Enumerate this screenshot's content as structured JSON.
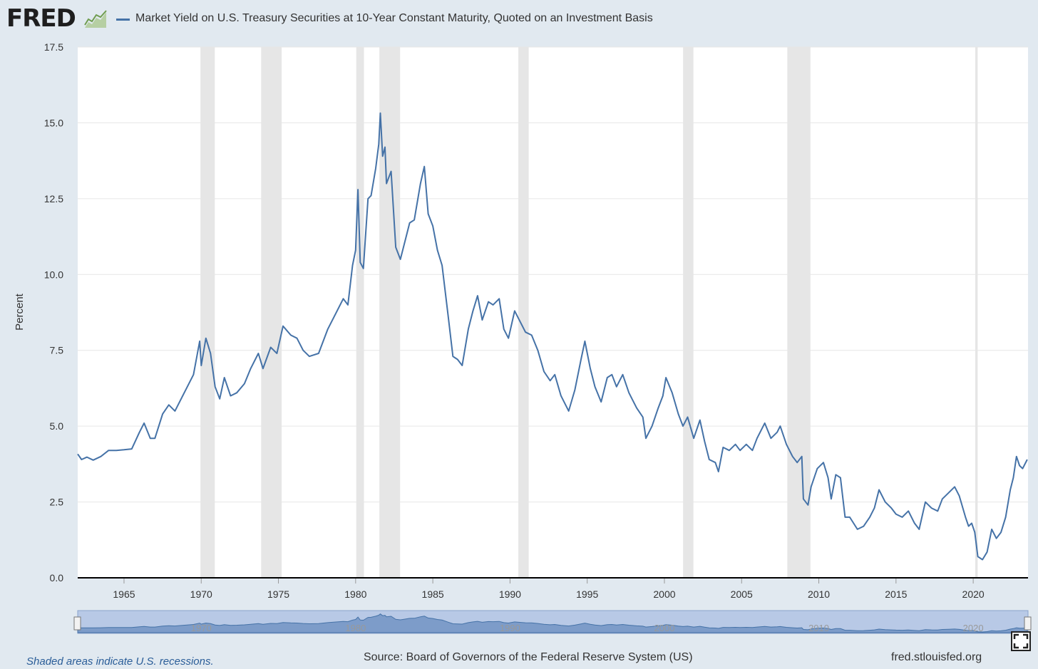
{
  "header": {
    "logo_text": "FRED",
    "legend_label": "Market Yield on U.S. Treasury Securities at 10-Year Constant Maturity, Quoted on an Investment Basis",
    "series_color": "#4572a7"
  },
  "footer": {
    "recession_note": "Shaded areas indicate U.S. recessions.",
    "source": "Source: Board of Governors of the Federal Reserve System (US)",
    "site": "fred.stlouisfed.org"
  },
  "icons": {
    "logo_graph": "line-graph-icon",
    "fullscreen": "fullscreen-icon"
  },
  "chart_data": {
    "type": "line",
    "ylabel": "Percent",
    "xlabel": "",
    "ylim": [
      0,
      17.5
    ],
    "xlim": [
      1962.0,
      2023.55
    ],
    "yticks": [
      0.0,
      2.5,
      5.0,
      7.5,
      10.0,
      12.5,
      15.0,
      17.5
    ],
    "ytick_labels": [
      "0.0",
      "2.5",
      "5.0",
      "7.5",
      "10.0",
      "12.5",
      "15.0",
      "17.5"
    ],
    "xticks": [
      1965,
      1970,
      1975,
      1980,
      1985,
      1990,
      1995,
      2000,
      2005,
      2010,
      2015,
      2020
    ],
    "grid": true,
    "recession_shading_color": "#e6e6e6",
    "recessions": [
      [
        1969.95,
        1970.88
      ],
      [
        1973.88,
        1975.21
      ],
      [
        1980.04,
        1980.54
      ],
      [
        1981.54,
        1982.88
      ],
      [
        1990.54,
        1991.21
      ],
      [
        2001.21,
        2001.88
      ],
      [
        2007.96,
        2009.46
      ],
      [
        2020.13,
        2020.29
      ]
    ],
    "series": [
      {
        "name": "Market Yield on U.S. Treasury Securities at 10-Year Constant Maturity, Quoted on an Investment Basis",
        "color": "#4572a7",
        "x": [
          1962.0,
          1962.25,
          1962.6,
          1963.0,
          1963.5,
          1964.0,
          1964.5,
          1965.0,
          1965.5,
          1966.0,
          1966.3,
          1966.7,
          1967.0,
          1967.5,
          1967.9,
          1968.3,
          1968.7,
          1969.0,
          1969.5,
          1969.9,
          1970.0,
          1970.3,
          1970.6,
          1970.9,
          1971.2,
          1971.5,
          1971.9,
          1972.3,
          1972.8,
          1973.2,
          1973.7,
          1974.0,
          1974.5,
          1974.9,
          1975.3,
          1975.8,
          1976.2,
          1976.6,
          1977.0,
          1977.6,
          1978.2,
          1978.8,
          1979.2,
          1979.5,
          1979.8,
          1980.0,
          1980.15,
          1980.3,
          1980.5,
          1980.8,
          1981.0,
          1981.3,
          1981.5,
          1981.6,
          1981.75,
          1981.9,
          1982.0,
          1982.3,
          1982.6,
          1982.9,
          1983.2,
          1983.5,
          1983.8,
          1984.2,
          1984.45,
          1984.7,
          1985.0,
          1985.3,
          1985.6,
          1986.0,
          1986.3,
          1986.6,
          1986.9,
          1987.3,
          1987.6,
          1987.9,
          1988.2,
          1988.6,
          1988.9,
          1989.3,
          1989.6,
          1989.9,
          1990.3,
          1990.7,
          1991.0,
          1991.4,
          1991.8,
          1992.2,
          1992.6,
          1992.9,
          1993.3,
          1993.8,
          1994.2,
          1994.6,
          1994.85,
          1995.2,
          1995.5,
          1995.9,
          1996.3,
          1996.6,
          1996.9,
          1997.3,
          1997.7,
          1998.2,
          1998.6,
          1998.8,
          1999.2,
          1999.6,
          1999.9,
          2000.1,
          2000.5,
          2000.9,
          2001.2,
          2001.5,
          2001.9,
          2002.3,
          2002.6,
          2002.9,
          2003.3,
          2003.5,
          2003.8,
          2004.2,
          2004.6,
          2004.9,
          2005.3,
          2005.7,
          2006.0,
          2006.5,
          2006.9,
          2007.3,
          2007.5,
          2007.9,
          2008.3,
          2008.6,
          2008.9,
          2009.0,
          2009.3,
          2009.5,
          2009.9,
          2010.3,
          2010.6,
          2010.8,
          2011.1,
          2011.4,
          2011.7,
          2012.0,
          2012.5,
          2012.9,
          2013.3,
          2013.6,
          2013.9,
          2014.3,
          2014.7,
          2015.0,
          2015.4,
          2015.8,
          2016.2,
          2016.5,
          2016.9,
          2017.3,
          2017.7,
          2018.0,
          2018.4,
          2018.8,
          2019.1,
          2019.5,
          2019.7,
          2019.9,
          2020.1,
          2020.3,
          2020.6,
          2020.9,
          2021.2,
          2021.5,
          2021.8,
          2022.1,
          2022.4,
          2022.6,
          2022.8,
          2023.0,
          2023.2,
          2023.5
        ],
        "values": [
          4.08,
          3.9,
          3.98,
          3.88,
          4.0,
          4.2,
          4.2,
          4.22,
          4.25,
          4.8,
          5.1,
          4.6,
          4.6,
          5.4,
          5.7,
          5.5,
          5.9,
          6.2,
          6.7,
          7.8,
          7.0,
          7.9,
          7.4,
          6.3,
          5.9,
          6.6,
          6.0,
          6.1,
          6.4,
          6.9,
          7.4,
          6.9,
          7.6,
          7.4,
          8.3,
          8.0,
          7.9,
          7.5,
          7.3,
          7.4,
          8.2,
          8.8,
          9.2,
          9.0,
          10.3,
          10.8,
          12.8,
          10.4,
          10.2,
          12.5,
          12.6,
          13.5,
          14.3,
          15.32,
          13.9,
          14.2,
          13.0,
          13.4,
          10.9,
          10.5,
          11.1,
          11.7,
          11.8,
          13.0,
          13.56,
          12.0,
          11.6,
          10.8,
          10.3,
          8.6,
          7.3,
          7.2,
          7.0,
          8.2,
          8.8,
          9.3,
          8.5,
          9.1,
          9.0,
          9.2,
          8.2,
          7.9,
          8.8,
          8.4,
          8.1,
          8.0,
          7.5,
          6.8,
          6.5,
          6.7,
          6.0,
          5.5,
          6.2,
          7.2,
          7.8,
          6.9,
          6.3,
          5.8,
          6.6,
          6.7,
          6.3,
          6.7,
          6.1,
          5.6,
          5.3,
          4.6,
          5.0,
          5.6,
          6.0,
          6.6,
          6.1,
          5.4,
          5.0,
          5.3,
          4.6,
          5.2,
          4.5,
          3.9,
          3.8,
          3.5,
          4.3,
          4.2,
          4.4,
          4.2,
          4.4,
          4.2,
          4.6,
          5.1,
          4.6,
          4.8,
          5.0,
          4.4,
          4.0,
          3.8,
          4.0,
          2.6,
          2.4,
          3.0,
          3.6,
          3.8,
          3.3,
          2.6,
          3.4,
          3.3,
          2.0,
          2.0,
          1.6,
          1.7,
          2.0,
          2.3,
          2.9,
          2.5,
          2.3,
          2.1,
          2.0,
          2.2,
          1.8,
          1.6,
          2.5,
          2.3,
          2.2,
          2.6,
          2.8,
          3.0,
          2.7,
          2.0,
          1.7,
          1.8,
          1.5,
          0.7,
          0.6,
          0.85,
          1.6,
          1.3,
          1.5,
          2.0,
          2.9,
          3.3,
          4.0,
          3.7,
          3.6,
          3.9
        ]
      }
    ]
  }
}
